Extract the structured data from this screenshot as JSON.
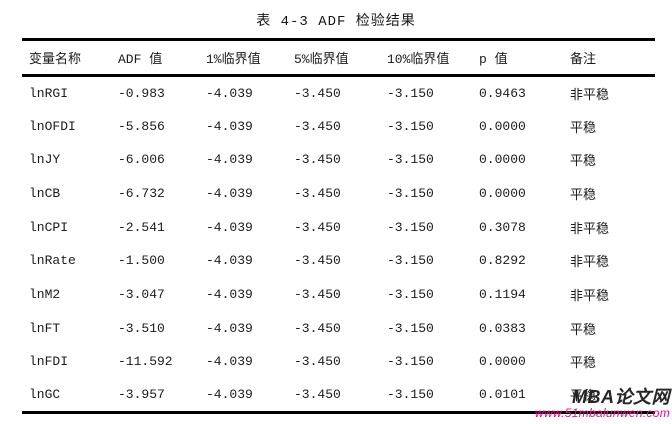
{
  "caption": "表 4-3 ADF 检验结果",
  "table": {
    "columns": [
      {
        "key": "variable",
        "label": "变量名称"
      },
      {
        "key": "adf",
        "label": "ADF 值"
      },
      {
        "key": "crit1",
        "label": "1%临界值"
      },
      {
        "key": "crit5",
        "label": "5%临界值"
      },
      {
        "key": "crit10",
        "label": "10%临界值"
      },
      {
        "key": "p",
        "label": "p 值"
      },
      {
        "key": "remark",
        "label": "备注"
      }
    ],
    "rows": [
      {
        "variable": "lnRGI",
        "adf": "-0.983",
        "crit1": "-4.039",
        "crit5": "-3.450",
        "crit10": "-3.150",
        "p": "0.9463",
        "remark": "非平稳"
      },
      {
        "variable": "lnOFDI",
        "adf": "-5.856",
        "crit1": "-4.039",
        "crit5": "-3.450",
        "crit10": "-3.150",
        "p": "0.0000",
        "remark": "平稳"
      },
      {
        "variable": "lnJY",
        "adf": "-6.006",
        "crit1": "-4.039",
        "crit5": "-3.450",
        "crit10": "-3.150",
        "p": "0.0000",
        "remark": "平稳"
      },
      {
        "variable": "lnCB",
        "adf": "-6.732",
        "crit1": "-4.039",
        "crit5": "-3.450",
        "crit10": "-3.150",
        "p": "0.0000",
        "remark": "平稳"
      },
      {
        "variable": "lnCPI",
        "adf": "-2.541",
        "crit1": "-4.039",
        "crit5": "-3.450",
        "crit10": "-3.150",
        "p": "0.3078",
        "remark": "非平稳"
      },
      {
        "variable": "lnRate",
        "adf": "-1.500",
        "crit1": "-4.039",
        "crit5": "-3.450",
        "crit10": "-3.150",
        "p": "0.8292",
        "remark": "非平稳"
      },
      {
        "variable": "lnM2",
        "adf": "-3.047",
        "crit1": "-4.039",
        "crit5": "-3.450",
        "crit10": "-3.150",
        "p": "0.1194",
        "remark": "非平稳"
      },
      {
        "variable": "lnFT",
        "adf": "-3.510",
        "crit1": "-4.039",
        "crit5": "-3.450",
        "crit10": "-3.150",
        "p": "0.0383",
        "remark": "平稳"
      },
      {
        "variable": "lnFDI",
        "adf": "-11.592",
        "crit1": "-4.039",
        "crit5": "-3.450",
        "crit10": "-3.150",
        "p": "0.0000",
        "remark": "平稳"
      },
      {
        "variable": "lnGC",
        "adf": "-3.957",
        "crit1": "-4.039",
        "crit5": "-3.450",
        "crit10": "-3.150",
        "p": "0.0101",
        "remark": "平稳"
      }
    ]
  },
  "watermark": {
    "brand": "MBA论文网",
    "url": "www.51mbalunwen.com",
    "url_color": "#e6108f",
    "brand_color": "#262626"
  },
  "colors": {
    "page_background": "#ffffff",
    "table_rule": "#000000",
    "text": "#1b1b1b"
  }
}
